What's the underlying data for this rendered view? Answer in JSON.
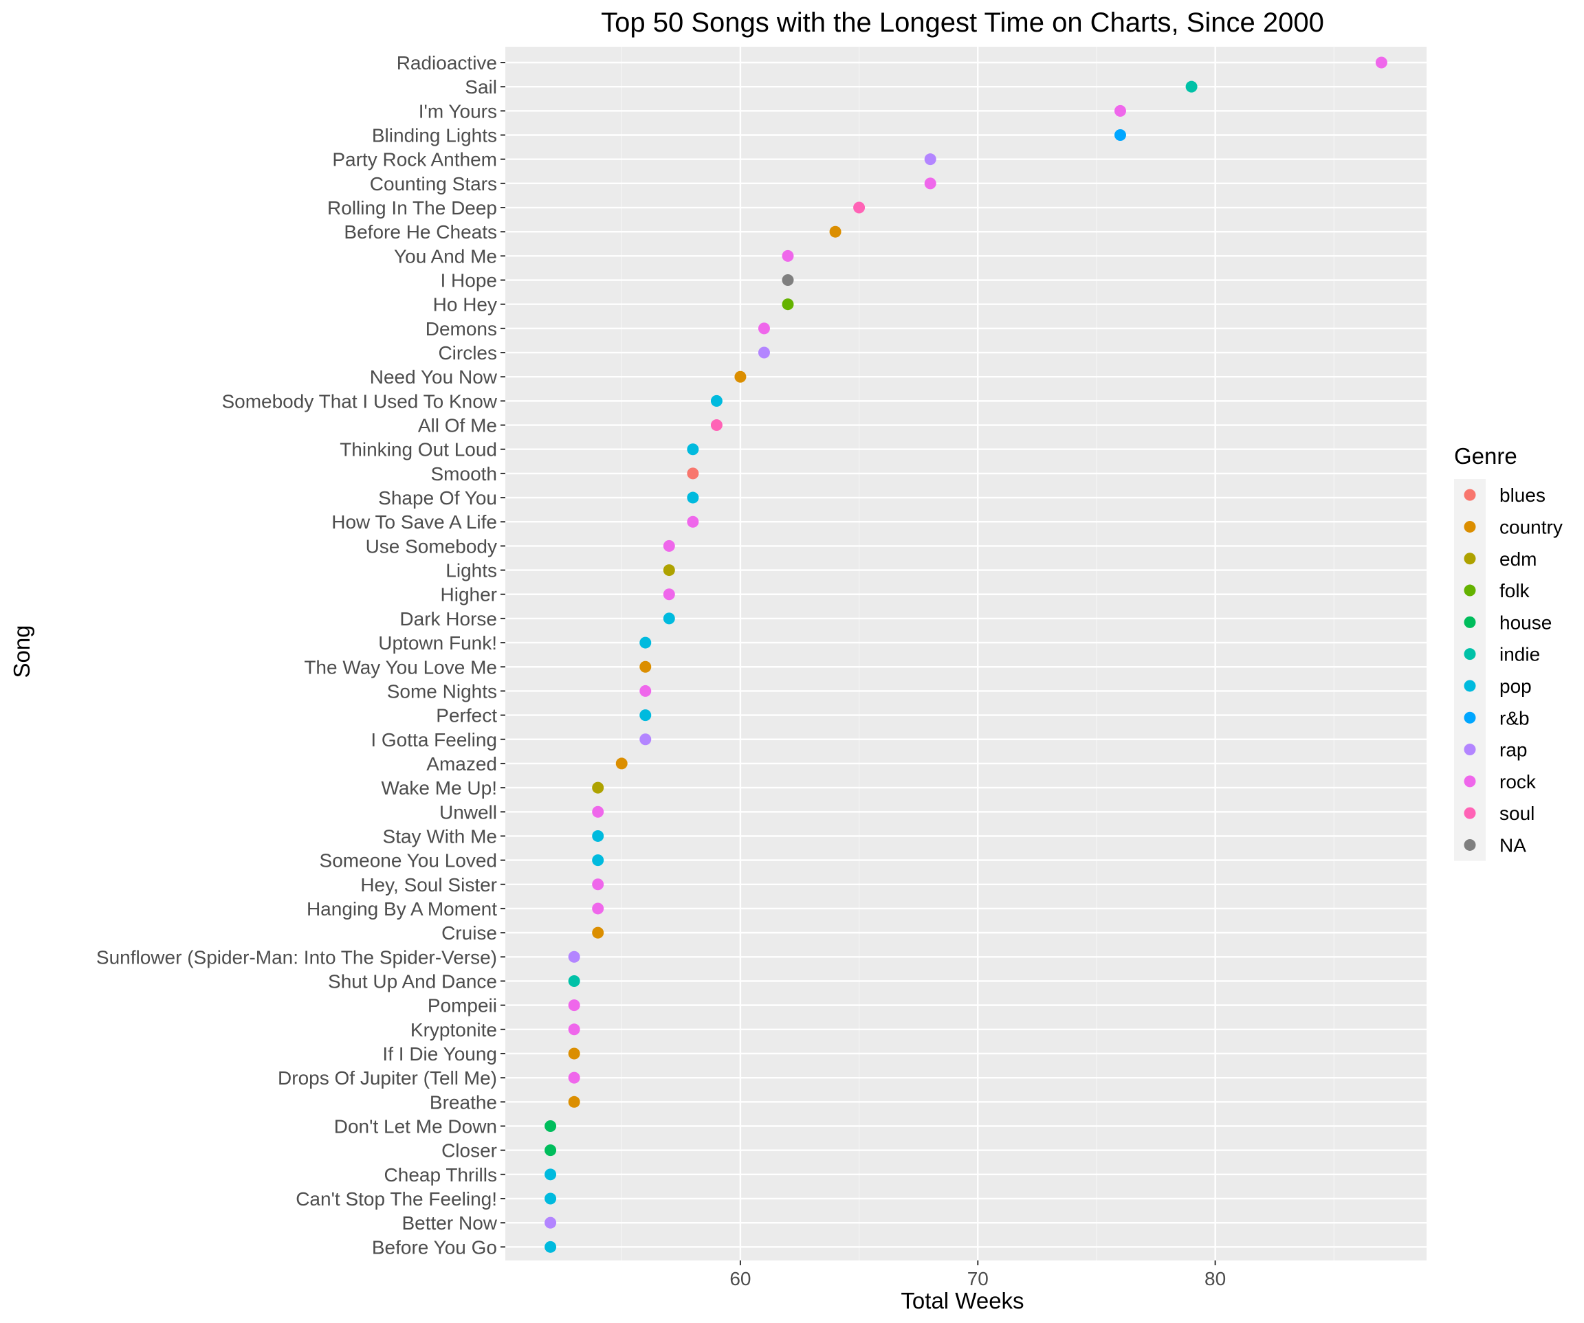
{
  "chart_data": {
    "type": "scatter",
    "title": "Top 50 Songs with the Longest Time on Charts, Since 2000",
    "xlabel": "Total Weeks",
    "ylabel": "Song",
    "xlim": [
      50.1,
      88.9
    ],
    "x_ticks": [
      60,
      70,
      80
    ],
    "grid": true,
    "legend": {
      "title": "Genre",
      "position": "right",
      "entries": [
        {
          "name": "blues",
          "color": "#F8766D"
        },
        {
          "name": "country",
          "color": "#DB8E00"
        },
        {
          "name": "edm",
          "color": "#AEA200"
        },
        {
          "name": "folk",
          "color": "#64B200"
        },
        {
          "name": "house",
          "color": "#00BD5C"
        },
        {
          "name": "indie",
          "color": "#00C1A7"
        },
        {
          "name": "pop",
          "color": "#00BADE"
        },
        {
          "name": "r&b",
          "color": "#00A6FF"
        },
        {
          "name": "rap",
          "color": "#B385FF"
        },
        {
          "name": "rock",
          "color": "#EF67EB"
        },
        {
          "name": "soul",
          "color": "#FF63B6"
        },
        {
          "name": "NA",
          "color": "#7F7F7F"
        }
      ]
    },
    "points": [
      {
        "song": "Radioactive",
        "weeks": 87,
        "genre": "rock"
      },
      {
        "song": "Sail",
        "weeks": 79,
        "genre": "indie"
      },
      {
        "song": "I'm Yours",
        "weeks": 76,
        "genre": "rock"
      },
      {
        "song": "Blinding Lights",
        "weeks": 76,
        "genre": "r&b"
      },
      {
        "song": "Party Rock Anthem",
        "weeks": 68,
        "genre": "rap"
      },
      {
        "song": "Counting Stars",
        "weeks": 68,
        "genre": "rock"
      },
      {
        "song": "Rolling In The Deep",
        "weeks": 65,
        "genre": "soul"
      },
      {
        "song": "Before He Cheats",
        "weeks": 64,
        "genre": "country"
      },
      {
        "song": "You And Me",
        "weeks": 62,
        "genre": "rock"
      },
      {
        "song": "I Hope",
        "weeks": 62,
        "genre": "NA"
      },
      {
        "song": "Ho Hey",
        "weeks": 62,
        "genre": "folk"
      },
      {
        "song": "Demons",
        "weeks": 61,
        "genre": "rock"
      },
      {
        "song": "Circles",
        "weeks": 61,
        "genre": "rap"
      },
      {
        "song": "Need You Now",
        "weeks": 60,
        "genre": "country"
      },
      {
        "song": "Somebody That I Used To Know",
        "weeks": 59,
        "genre": "pop"
      },
      {
        "song": "All Of Me",
        "weeks": 59,
        "genre": "soul"
      },
      {
        "song": "Thinking Out Loud",
        "weeks": 58,
        "genre": "pop"
      },
      {
        "song": "Smooth",
        "weeks": 58,
        "genre": "blues"
      },
      {
        "song": "Shape Of You",
        "weeks": 58,
        "genre": "pop"
      },
      {
        "song": "How To Save A Life",
        "weeks": 58,
        "genre": "rock"
      },
      {
        "song": "Use Somebody",
        "weeks": 57,
        "genre": "rock"
      },
      {
        "song": "Lights",
        "weeks": 57,
        "genre": "edm"
      },
      {
        "song": "Higher",
        "weeks": 57,
        "genre": "rock"
      },
      {
        "song": "Dark Horse",
        "weeks": 57,
        "genre": "pop"
      },
      {
        "song": "Uptown Funk!",
        "weeks": 56,
        "genre": "pop"
      },
      {
        "song": "The Way You Love Me",
        "weeks": 56,
        "genre": "country"
      },
      {
        "song": "Some Nights",
        "weeks": 56,
        "genre": "rock"
      },
      {
        "song": "Perfect",
        "weeks": 56,
        "genre": "pop"
      },
      {
        "song": "I Gotta Feeling",
        "weeks": 56,
        "genre": "rap"
      },
      {
        "song": "Amazed",
        "weeks": 55,
        "genre": "country"
      },
      {
        "song": "Wake Me Up!",
        "weeks": 54,
        "genre": "edm"
      },
      {
        "song": "Unwell",
        "weeks": 54,
        "genre": "rock"
      },
      {
        "song": "Stay With Me",
        "weeks": 54,
        "genre": "pop"
      },
      {
        "song": "Someone You Loved",
        "weeks": 54,
        "genre": "pop"
      },
      {
        "song": "Hey, Soul Sister",
        "weeks": 54,
        "genre": "rock"
      },
      {
        "song": "Hanging By A Moment",
        "weeks": 54,
        "genre": "rock"
      },
      {
        "song": "Cruise",
        "weeks": 54,
        "genre": "country"
      },
      {
        "song": "Sunflower (Spider-Man: Into The Spider-Verse)",
        "weeks": 53,
        "genre": "rap"
      },
      {
        "song": "Shut Up And Dance",
        "weeks": 53,
        "genre": "indie"
      },
      {
        "song": "Pompeii",
        "weeks": 53,
        "genre": "rock"
      },
      {
        "song": "Kryptonite",
        "weeks": 53,
        "genre": "rock"
      },
      {
        "song": "If I Die Young",
        "weeks": 53,
        "genre": "country"
      },
      {
        "song": "Drops Of Jupiter (Tell Me)",
        "weeks": 53,
        "genre": "rock"
      },
      {
        "song": "Breathe",
        "weeks": 53,
        "genre": "country"
      },
      {
        "song": "Don't Let Me Down",
        "weeks": 52,
        "genre": "house"
      },
      {
        "song": "Closer",
        "weeks": 52,
        "genre": "house"
      },
      {
        "song": "Cheap Thrills",
        "weeks": 52,
        "genre": "pop"
      },
      {
        "song": "Can't Stop The Feeling!",
        "weeks": 52,
        "genre": "pop"
      },
      {
        "song": "Better Now",
        "weeks": 52,
        "genre": "rap"
      },
      {
        "song": "Before You Go",
        "weeks": 52,
        "genre": "pop"
      }
    ]
  }
}
